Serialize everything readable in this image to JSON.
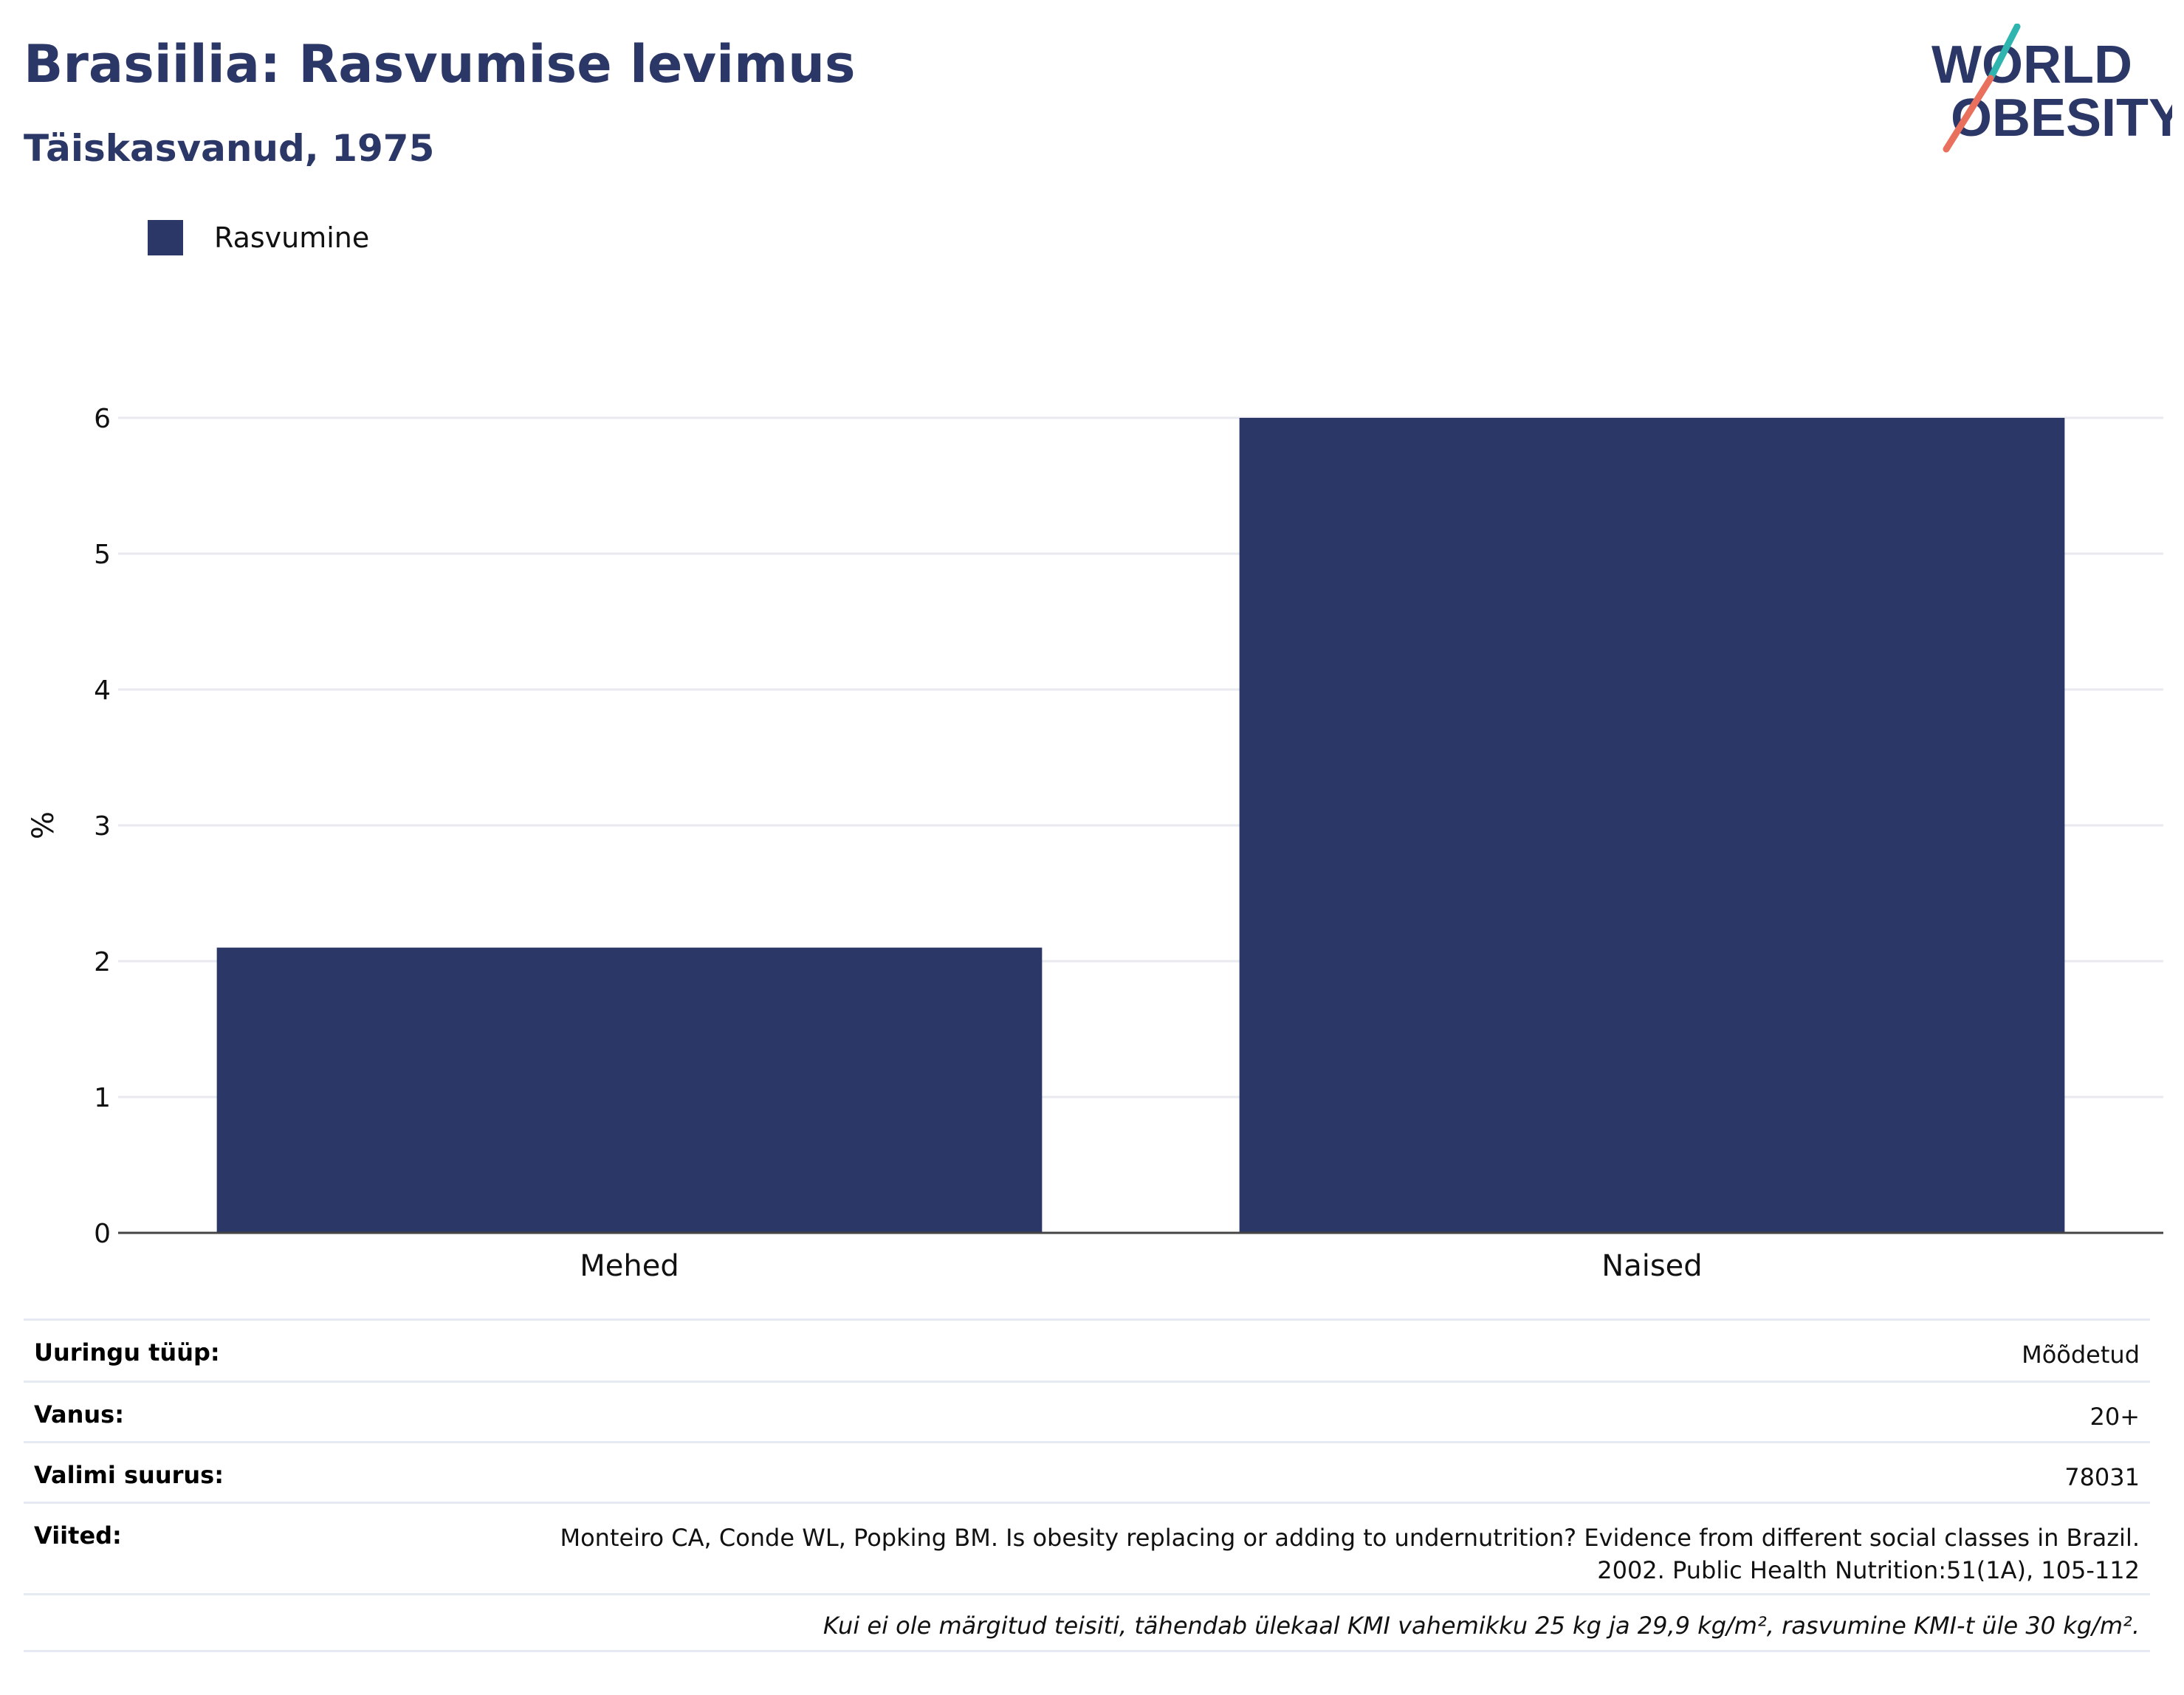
{
  "header": {
    "title": "Brasiilia: Rasvumise levimus",
    "subtitle": "Täiskasvanud, 1975"
  },
  "logo": {
    "line1": "WORLD",
    "line2": "OBESITY"
  },
  "colors": {
    "bar": "#2b3766",
    "title": "#2b3766",
    "grid": "#e8eaf0",
    "logo_teal": "#2fb5b0",
    "logo_coral": "#e8705c"
  },
  "chart_data": {
    "type": "bar",
    "categories": [
      "Mehed",
      "Naised"
    ],
    "series": [
      {
        "name": "Rasvumine",
        "values": [
          2.1,
          6.0
        ]
      }
    ],
    "ylabel": "%",
    "xlabel": "",
    "ylim": [
      0,
      6.4
    ],
    "yticks": [
      0,
      1,
      2,
      3,
      4,
      5,
      6
    ],
    "grid": true,
    "legend": "top-left"
  },
  "meta": {
    "rows": [
      {
        "key": "Uuringu tüüp:",
        "value": "Mõõdetud"
      },
      {
        "key": "Vanus:",
        "value": "20+"
      },
      {
        "key": "Valimi suurus:",
        "value": "78031"
      },
      {
        "key": "Viited:",
        "value": "Monteiro CA, Conde WL, Popking BM. Is obesity replacing or adding to undernutrition? Evidence from different social classes in Brazil.",
        "value2": "2002. Public Health Nutrition:51(1A), 105-112"
      }
    ],
    "note": "Kui ei ole märgitud teisiti, tähendab ülekaal KMI vahemikku 25 kg ja 29,9 kg/m², rasvumine KMI-t üle 30 kg/m²."
  }
}
